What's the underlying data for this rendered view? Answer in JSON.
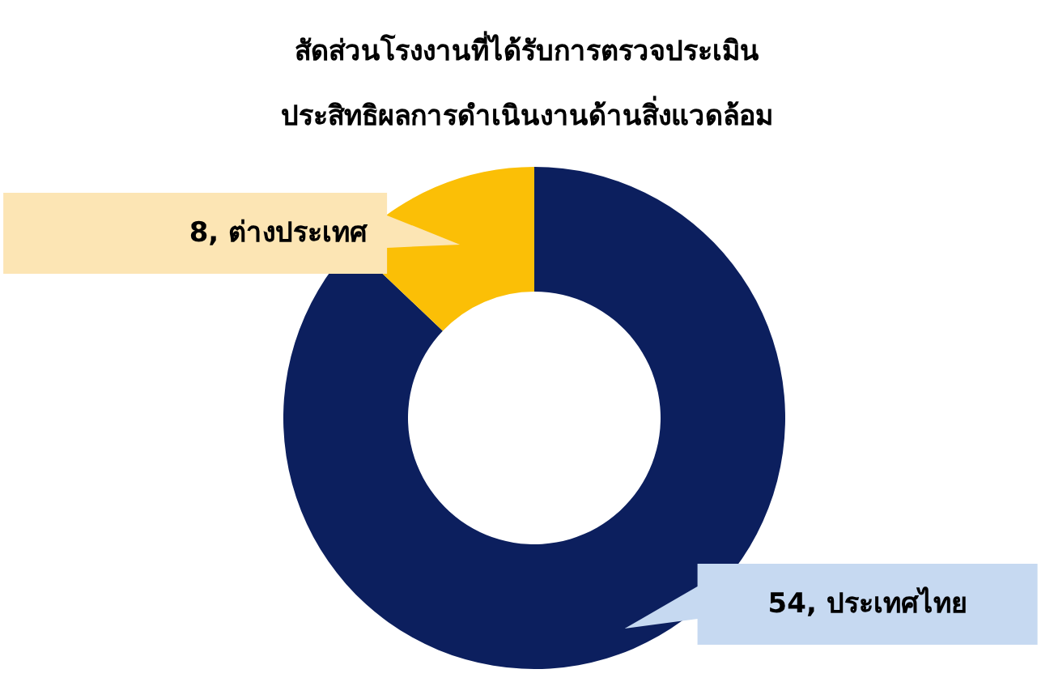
{
  "chart_data": {
    "type": "donut",
    "title": "สัดส่วนโรงงานที่ได้รับการตรวจประเมิน\nประสิทธิผลการดำเนินงานด้านสิ่งแวดล้อม",
    "categories": [
      "ประเทศไทย",
      "ต่างประเทศ"
    ],
    "values": [
      54,
      8
    ],
    "colors": [
      "#0c1f5e",
      "#fbbf06"
    ],
    "value_labels": [
      "54,",
      "8,"
    ]
  }
}
